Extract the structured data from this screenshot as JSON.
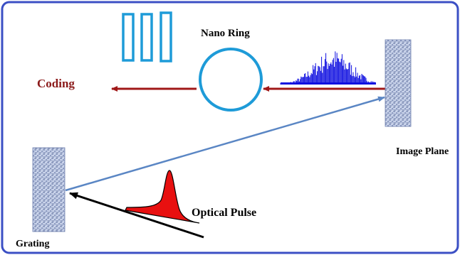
{
  "labels": {
    "coding": "Coding",
    "nano_ring": "Nano Ring",
    "image_plane": "Image Plane",
    "grating": "Grating",
    "optical_pulse": "Optical Pulse"
  },
  "colors": {
    "frame": "#3b4fc4",
    "coding_text": "#8b1a1a",
    "red_arrow": "#a01818",
    "blue_arrow": "#5a86c4",
    "ring": "#1e9bd8",
    "bars": "#1e9bd8",
    "spectrum": "#1010e0",
    "pulse_fill": "#e81010",
    "black": "#000000"
  }
}
